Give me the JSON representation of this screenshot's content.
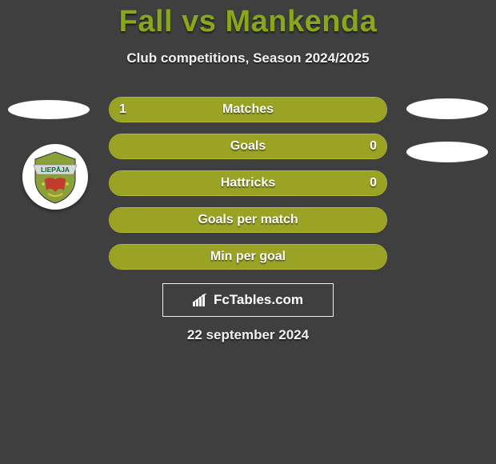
{
  "header": {
    "title": "Fall vs Mankenda",
    "title_color": "#8aa61b",
    "subtitle": "Club competitions, Season 2024/2025"
  },
  "background_color": "#3f3f3f",
  "stats": {
    "bar_border_color": "#b7bb2f",
    "fill_color_left": "#9aa324",
    "fill_color_right": "#9aa324",
    "label_color": "#ffffff",
    "rows": [
      {
        "label": "Matches",
        "left": "1",
        "right": "",
        "left_pct": 50,
        "right_pct": 50
      },
      {
        "label": "Goals",
        "left": "",
        "right": "0",
        "left_pct": 100,
        "right_pct": 0
      },
      {
        "label": "Hattricks",
        "left": "",
        "right": "0",
        "left_pct": 100,
        "right_pct": 0
      },
      {
        "label": "Goals per match",
        "left": "",
        "right": "",
        "left_pct": 100,
        "right_pct": 0
      },
      {
        "label": "Min per goal",
        "left": "",
        "right": "",
        "left_pct": 100,
        "right_pct": 0
      }
    ]
  },
  "club_logo": {
    "name": "FK Liepaja",
    "label_text": "LIEPĀJA",
    "shield_fill": "#8aa13a",
    "banner_fill": "#d8d8d8",
    "banner_text_color": "#006b3f",
    "accent_red": "#c33a2f"
  },
  "brand": {
    "text": "FcTables.com",
    "icon_name": "bar-chart-icon"
  },
  "date_text": "22 september 2024"
}
